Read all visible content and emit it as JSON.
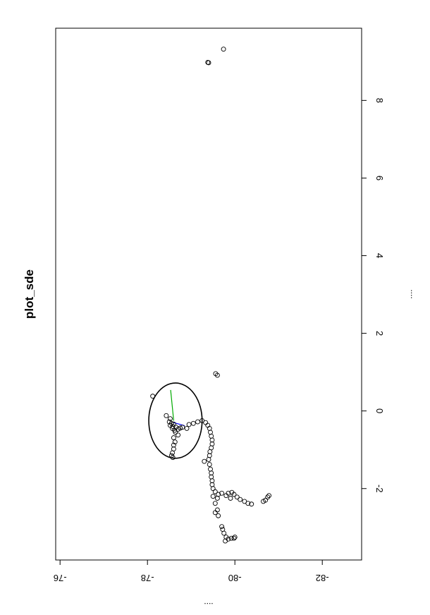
{
  "chart_data": {
    "type": "scatter",
    "title": "plot_sde",
    "xlabel": "....",
    "ylabel": "....",
    "orientation": "rotated-90-clockwise",
    "x_ticks": [
      -76,
      -78,
      -80,
      -82
    ],
    "x_tick_labels": [
      "-76",
      "-78",
      "-80",
      "-82"
    ],
    "xlim": [
      -75.9,
      -82.9
    ],
    "y_ticks": [
      -2,
      0,
      2,
      4,
      6,
      8
    ],
    "y_tick_labels": [
      "-2",
      "0",
      "2",
      "4",
      "6",
      "8"
    ],
    "ylim": [
      -3.84,
      9.86
    ],
    "grid": false,
    "legend": "none",
    "colors": {
      "points": "#000000",
      "ellipse": "#000000",
      "axis1": "#00aa00",
      "axis2": "#0000ff"
    },
    "ellipse": {
      "center": [
        -78.64,
        -0.25
      ],
      "semi_axis_x": 0.61,
      "semi_axis_y": 0.97
    },
    "axis_lines": [
      {
        "name": "major",
        "color": "#00aa00",
        "from": [
          -78.53,
          0.54
        ],
        "to": [
          -78.6,
          -0.25
        ]
      },
      {
        "name": "minor",
        "color": "#0000ff",
        "from": [
          -78.6,
          -0.3
        ],
        "to": [
          -78.85,
          -0.38
        ]
      }
    ],
    "points": [
      [
        -79.74,
        9.32
      ],
      [
        -79.38,
        8.98
      ],
      [
        -79.4,
        8.97
      ],
      [
        -79.56,
        0.96
      ],
      [
        -79.6,
        0.92
      ],
      [
        -78.12,
        0.38
      ],
      [
        -78.43,
        -0.12
      ],
      [
        -78.52,
        -0.2
      ],
      [
        -78.5,
        -0.28
      ],
      [
        -78.55,
        -0.32
      ],
      [
        -78.6,
        -0.34
      ],
      [
        -78.52,
        -0.37
      ],
      [
        -78.58,
        -0.4
      ],
      [
        -78.65,
        -0.42
      ],
      [
        -78.57,
        -0.45
      ],
      [
        -78.7,
        -0.47
      ],
      [
        -78.75,
        -0.44
      ],
      [
        -78.62,
        -0.5
      ],
      [
        -78.8,
        -0.42
      ],
      [
        -78.64,
        -0.55
      ],
      [
        -78.7,
        -0.62
      ],
      [
        -78.6,
        -0.69
      ],
      [
        -78.63,
        -0.8
      ],
      [
        -78.6,
        -0.88
      ],
      [
        -78.6,
        -0.98
      ],
      [
        -78.57,
        -1.08
      ],
      [
        -78.55,
        -1.15
      ],
      [
        -78.58,
        -1.2
      ],
      [
        -78.9,
        -0.45
      ],
      [
        -78.95,
        -0.35
      ],
      [
        -79.05,
        -0.32
      ],
      [
        -79.15,
        -0.28
      ],
      [
        -79.25,
        -0.25
      ],
      [
        -79.33,
        -0.3
      ],
      [
        -79.38,
        -0.37
      ],
      [
        -79.42,
        -0.45
      ],
      [
        -79.44,
        -0.55
      ],
      [
        -79.46,
        -0.65
      ],
      [
        -79.48,
        -0.75
      ],
      [
        -79.48,
        -0.85
      ],
      [
        -79.46,
        -0.95
      ],
      [
        -79.43,
        -1.05
      ],
      [
        -79.42,
        -1.15
      ],
      [
        -79.4,
        -1.25
      ],
      [
        -79.3,
        -1.3
      ],
      [
        -79.42,
        -1.38
      ],
      [
        -79.44,
        -1.5
      ],
      [
        -79.46,
        -1.6
      ],
      [
        -79.46,
        -1.7
      ],
      [
        -79.48,
        -1.8
      ],
      [
        -79.48,
        -1.9
      ],
      [
        -79.5,
        -2.0
      ],
      [
        -79.55,
        -2.08
      ],
      [
        -79.62,
        -2.15
      ],
      [
        -79.7,
        -2.12
      ],
      [
        -79.8,
        -2.18
      ],
      [
        -79.9,
        -2.25
      ],
      [
        -79.93,
        -2.1
      ],
      [
        -79.98,
        -2.15
      ],
      [
        -79.85,
        -2.12
      ],
      [
        -80.05,
        -2.22
      ],
      [
        -80.12,
        -2.28
      ],
      [
        -80.22,
        -2.33
      ],
      [
        -80.3,
        -2.38
      ],
      [
        -80.38,
        -2.4
      ],
      [
        -79.55,
        -2.38
      ],
      [
        -79.6,
        -2.25
      ],
      [
        -79.5,
        -2.2
      ],
      [
        -80.78,
        -2.18
      ],
      [
        -80.75,
        -2.22
      ],
      [
        -80.7,
        -2.3
      ],
      [
        -80.65,
        -2.33
      ],
      [
        -79.6,
        -2.55
      ],
      [
        -79.55,
        -2.62
      ],
      [
        -79.62,
        -2.7
      ],
      [
        -79.7,
        -2.98
      ],
      [
        -79.72,
        -3.05
      ],
      [
        -79.75,
        -3.15
      ],
      [
        -79.8,
        -3.25
      ],
      [
        -79.78,
        -3.35
      ],
      [
        -79.85,
        -3.3
      ],
      [
        -79.92,
        -3.28
      ],
      [
        -79.98,
        -3.28
      ],
      [
        -80.0,
        -3.25
      ]
    ]
  }
}
